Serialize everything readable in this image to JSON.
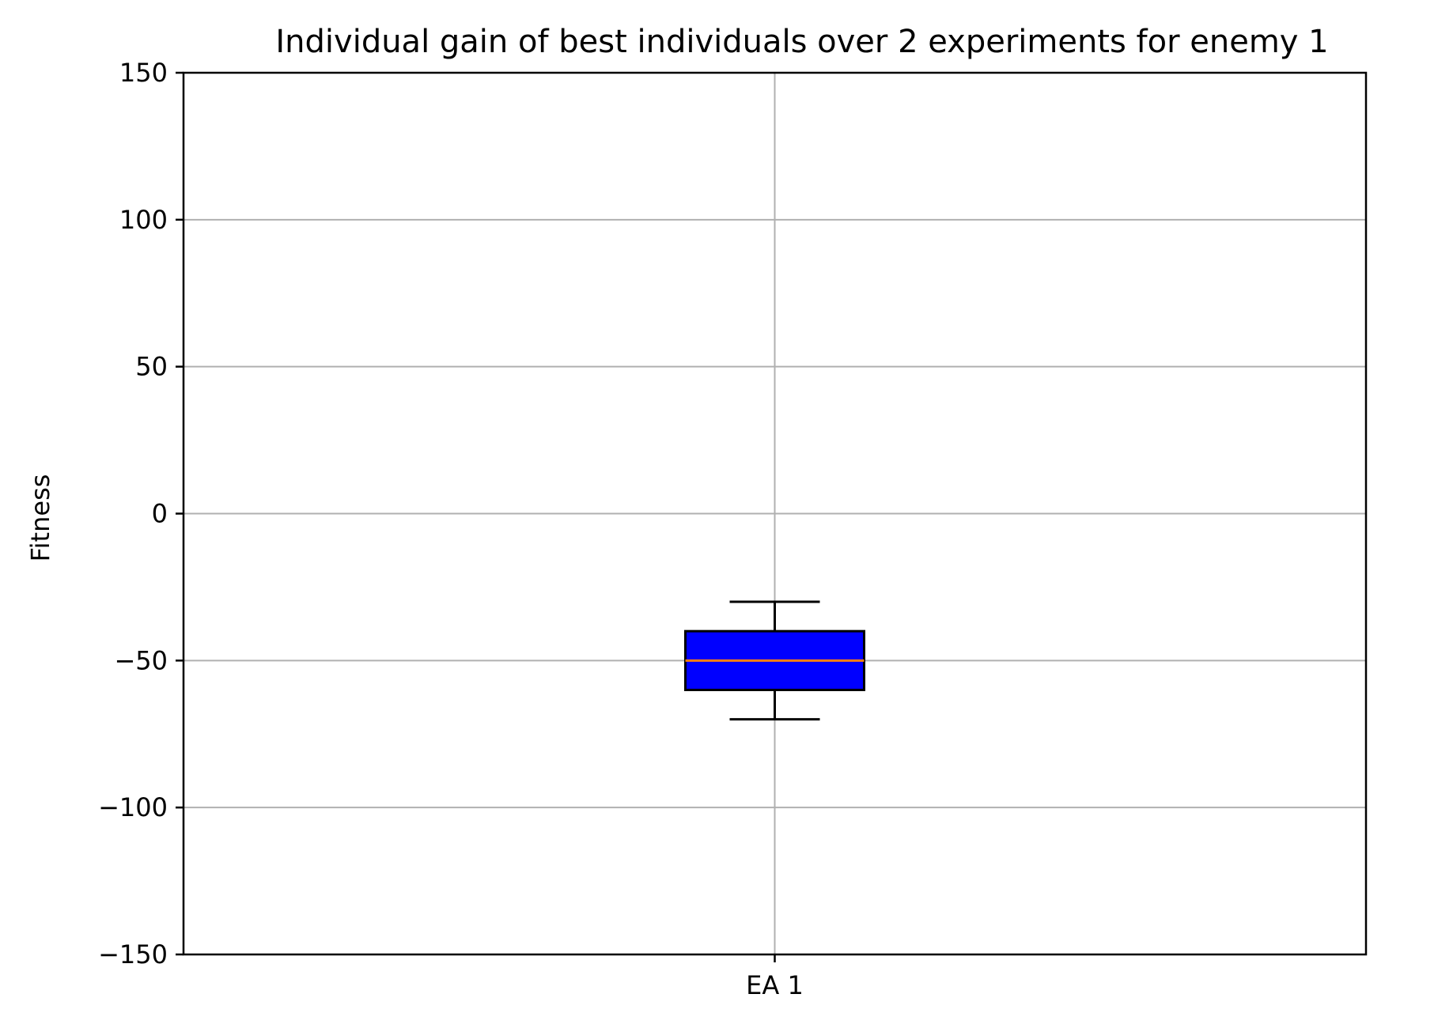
{
  "chart_data": {
    "type": "box",
    "title": "Individual gain of best individuals over 2 experiments for enemy 1",
    "xlabel": "",
    "ylabel": "Fitness",
    "categories": [
      "EA 1"
    ],
    "ylim": [
      -150,
      150
    ],
    "yticks": [
      -150,
      -100,
      -50,
      0,
      50,
      100,
      150
    ],
    "ytick_labels": [
      "−150",
      "−100",
      "−50",
      "0",
      "50",
      "100",
      "150"
    ],
    "grid": true,
    "boxes": [
      {
        "category": "EA 1",
        "whisker_low": -70,
        "q1": -60,
        "median": -50,
        "q3": -40,
        "whisker_high": -30
      }
    ],
    "colors": {
      "box_fill": "#0000ff",
      "median": "#ff7f0e",
      "edge": "#000000",
      "grid": "#b0b0b0"
    }
  }
}
